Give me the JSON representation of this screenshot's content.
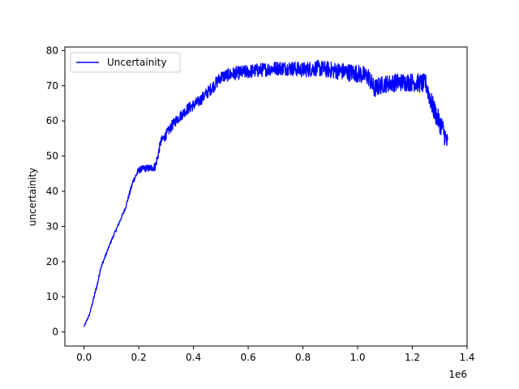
{
  "chart_data": {
    "type": "line",
    "title": "",
    "xlabel": "",
    "ylabel": "uncertainity",
    "x_offset_label": "1e6",
    "xlim": [
      -0.07,
      1.4
    ],
    "ylim": [
      -4,
      81
    ],
    "x_ticks": [
      0.0,
      0.2,
      0.4,
      0.6,
      0.8,
      1.0,
      1.2,
      1.4
    ],
    "x_tick_labels": [
      "0.0",
      "0.2",
      "0.4",
      "0.6",
      "0.8",
      "1.0",
      "1.2",
      "1.4"
    ],
    "y_ticks": [
      0,
      10,
      20,
      30,
      40,
      50,
      60,
      70,
      80
    ],
    "y_tick_labels": [
      "0",
      "10",
      "20",
      "30",
      "40",
      "50",
      "60",
      "70",
      "80"
    ],
    "grid": false,
    "legend_position": "top-left",
    "series": [
      {
        "name": "Uncertainity",
        "color": "#0000ff",
        "x": [
          0.0,
          0.02,
          0.04,
          0.05,
          0.06,
          0.08,
          0.1,
          0.12,
          0.15,
          0.18,
          0.2,
          0.22,
          0.24,
          0.26,
          0.27,
          0.28,
          0.3,
          0.32,
          0.34,
          0.36,
          0.38,
          0.4,
          0.42,
          0.45,
          0.48,
          0.5,
          0.55,
          0.6,
          0.65,
          0.7,
          0.75,
          0.8,
          0.85,
          0.9,
          0.95,
          1.0,
          1.04,
          1.06,
          1.08,
          1.1,
          1.15,
          1.2,
          1.25,
          1.27,
          1.29,
          1.31,
          1.33
        ],
        "values": [
          1.5,
          5,
          11,
          14,
          18,
          22,
          26,
          29.5,
          35,
          43,
          46,
          46.5,
          46.5,
          47,
          50,
          54,
          56,
          58.5,
          60.5,
          62,
          63.5,
          64.5,
          65.5,
          68,
          70.5,
          72.5,
          73.5,
          74,
          74.5,
          75,
          75,
          74.5,
          75,
          74.5,
          74,
          73.5,
          72.5,
          69,
          70,
          70.5,
          71,
          71,
          70.5,
          65,
          61,
          58,
          53
        ],
        "band_halfwidth": [
          0.3,
          0.3,
          0.6,
          0.6,
          0.5,
          0.4,
          0.4,
          0.4,
          0.5,
          0.8,
          0.9,
          1.0,
          1.1,
          1.2,
          1.3,
          1.3,
          1.4,
          1.5,
          1.5,
          1.5,
          1.6,
          1.6,
          1.6,
          1.7,
          1.8,
          1.8,
          1.9,
          2.0,
          2.0,
          2.0,
          2.1,
          2.2,
          2.3,
          2.4,
          2.5,
          2.6,
          2.7,
          2.8,
          2.6,
          2.5,
          2.6,
          2.6,
          2.8,
          3.0,
          3.0,
          3.0,
          3.0
        ]
      }
    ]
  }
}
